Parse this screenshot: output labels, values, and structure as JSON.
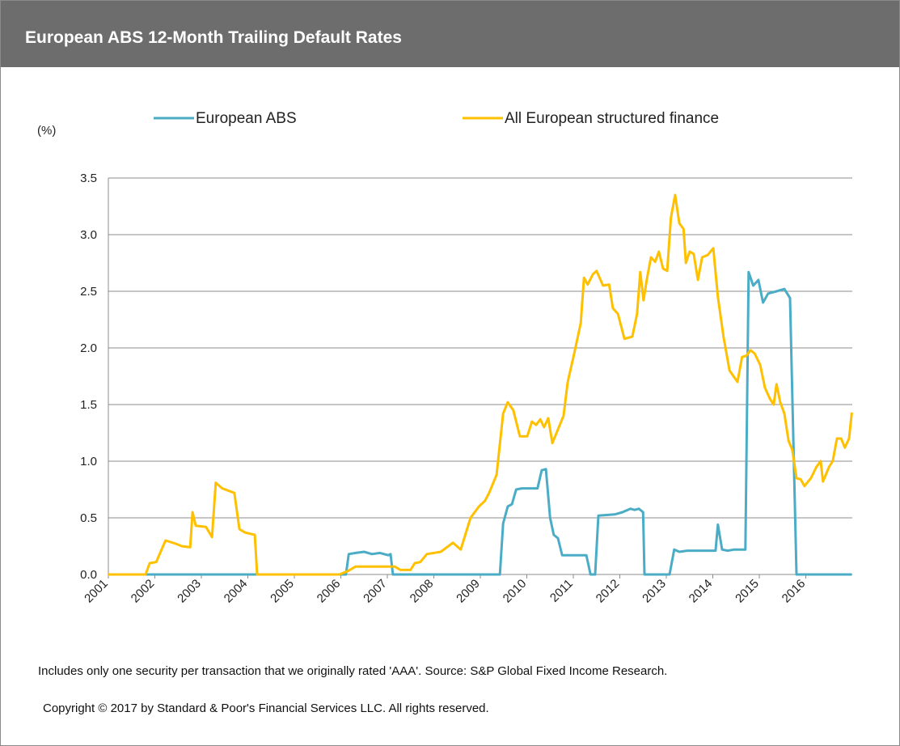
{
  "chart_data": {
    "type": "line",
    "title": "European ABS 12-Month Trailing Default Rates",
    "y_unit": "(%)",
    "xlim": [
      2001,
      2017
    ],
    "xticks": [
      2001,
      2002,
      2003,
      2004,
      2005,
      2006,
      2007,
      2008,
      2009,
      2010,
      2011,
      2012,
      2013,
      2014,
      2015,
      2016
    ],
    "ylim": [
      0,
      3.5
    ],
    "yticks": [
      {
        "value": 0,
        "label": "0.0"
      },
      {
        "value": 0.5,
        "label": "0.5"
      },
      {
        "value": 1,
        "label": "1.0"
      },
      {
        "value": 1.5,
        "label": "1.5"
      },
      {
        "value": 2,
        "label": "2.0"
      },
      {
        "value": 2.5,
        "label": "2.5"
      },
      {
        "value": 3,
        "label": "3.0"
      },
      {
        "value": 3.5,
        "label": "3.5"
      }
    ],
    "grid": true,
    "series": [
      {
        "name": "European ABS",
        "color": "#4bacc6",
        "x": [
          2001.0,
          2006.11,
          2006.17,
          2006.32,
          2006.5,
          2006.67,
          2006.84,
          2007.02,
          2007.07,
          2007.12,
          2009.42,
          2009.49,
          2009.59,
          2009.68,
          2009.77,
          2009.89,
          2010.23,
          2010.32,
          2010.41,
          2010.5,
          2010.58,
          2010.67,
          2010.76,
          2011.28,
          2011.37,
          2011.47,
          2011.54,
          2011.89,
          2012.06,
          2012.23,
          2012.32,
          2012.41,
          2012.5,
          2012.53,
          2013.07,
          2013.17,
          2013.28,
          2013.45,
          2013.8,
          2014.06,
          2014.11,
          2014.2,
          2014.32,
          2014.46,
          2014.63,
          2014.7,
          2014.77,
          2014.87,
          2014.98,
          2015.08,
          2015.19,
          2015.37,
          2015.54,
          2015.66,
          2015.8,
          2016.99
        ],
        "values": [
          0,
          0,
          0.18,
          0.19,
          0.2,
          0.18,
          0.19,
          0.17,
          0.18,
          0,
          0,
          0.45,
          0.6,
          0.62,
          0.75,
          0.76,
          0.76,
          0.92,
          0.93,
          0.5,
          0.35,
          0.32,
          0.17,
          0.17,
          0,
          0,
          0.52,
          0.53,
          0.55,
          0.58,
          0.57,
          0.58,
          0.55,
          0,
          0,
          0.22,
          0.2,
          0.21,
          0.21,
          0.21,
          0.44,
          0.22,
          0.21,
          0.22,
          0.22,
          0.22,
          2.67,
          2.55,
          2.6,
          2.4,
          2.48,
          2.5,
          2.52,
          2.44,
          0,
          0
        ]
      },
      {
        "name": "All European structured finance",
        "color": "#ffc000",
        "x": [
          2001.0,
          2001.8,
          2001.89,
          2002.03,
          2002.23,
          2002.46,
          2002.58,
          2002.76,
          2002.81,
          2002.88,
          2003.1,
          2003.23,
          2003.31,
          2003.45,
          2003.71,
          2003.82,
          2003.94,
          2004.15,
          2004.2,
          2005.97,
          2006.15,
          2006.32,
          2007.16,
          2007.28,
          2007.5,
          2007.59,
          2007.71,
          2007.85,
          2008.15,
          2008.41,
          2008.58,
          2008.79,
          2008.97,
          2009.1,
          2009.19,
          2009.35,
          2009.49,
          2009.59,
          2009.71,
          2009.85,
          2010.01,
          2010.11,
          2010.2,
          2010.29,
          2010.37,
          2010.46,
          2010.55,
          2010.67,
          2010.79,
          2010.88,
          2011.02,
          2011.16,
          2011.23,
          2011.31,
          2011.42,
          2011.5,
          2011.64,
          2011.77,
          2011.85,
          2011.96,
          2012.1,
          2012.27,
          2012.37,
          2012.44,
          2012.51,
          2012.58,
          2012.67,
          2012.76,
          2012.84,
          2012.93,
          2013.02,
          2013.1,
          2013.19,
          2013.28,
          2013.37,
          2013.42,
          2013.5,
          2013.59,
          2013.68,
          2013.77,
          2013.89,
          2014.01,
          2014.11,
          2014.23,
          2014.36,
          2014.53,
          2014.63,
          2014.72,
          2014.81,
          2014.9,
          2015.02,
          2015.12,
          2015.23,
          2015.31,
          2015.37,
          2015.45,
          2015.54,
          2015.63,
          2015.71,
          2015.8,
          2015.89,
          2015.97,
          2016.11,
          2016.23,
          2016.32,
          2016.37,
          2016.5,
          2016.58,
          2016.67,
          2016.76,
          2016.84,
          2016.93,
          2016.99
        ],
        "values": [
          0,
          0,
          0.1,
          0.11,
          0.3,
          0.27,
          0.25,
          0.24,
          0.55,
          0.43,
          0.42,
          0.33,
          0.81,
          0.76,
          0.72,
          0.4,
          0.37,
          0.35,
          0,
          0,
          0.03,
          0.07,
          0.07,
          0.04,
          0.04,
          0.1,
          0.11,
          0.18,
          0.2,
          0.28,
          0.22,
          0.5,
          0.6,
          0.65,
          0.72,
          0.88,
          1.42,
          1.52,
          1.45,
          1.22,
          1.22,
          1.35,
          1.32,
          1.37,
          1.3,
          1.38,
          1.16,
          1.28,
          1.4,
          1.7,
          1.95,
          2.22,
          2.62,
          2.56,
          2.65,
          2.68,
          2.55,
          2.56,
          2.35,
          2.3,
          2.08,
          2.1,
          2.3,
          2.67,
          2.42,
          2.6,
          2.8,
          2.76,
          2.85,
          2.7,
          2.68,
          3.15,
          3.35,
          3.1,
          3.05,
          2.75,
          2.85,
          2.83,
          2.6,
          2.8,
          2.82,
          2.88,
          2.45,
          2.1,
          1.8,
          1.7,
          1.92,
          1.93,
          1.98,
          1.95,
          1.85,
          1.65,
          1.55,
          1.5,
          1.68,
          1.52,
          1.42,
          1.18,
          1.1,
          0.85,
          0.84,
          0.78,
          0.85,
          0.95,
          1.0,
          0.82,
          0.95,
          1.0,
          1.2,
          1.2,
          1.12,
          1.2,
          1.43
        ]
      }
    ],
    "legend": "top",
    "notes": [
      "Includes only one security per transaction that we originally rated 'AAA'. Source:  S&P Global Fixed Income Research.",
      "Copyright © 2017 by Standard & Poor's Financial Services LLC. All rights reserved."
    ]
  }
}
